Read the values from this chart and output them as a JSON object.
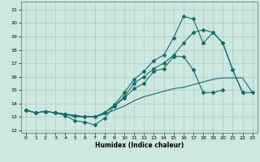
{
  "xlabel": "Humidex (Indice chaleur)",
  "bg_color": "#cce8e0",
  "grid_color": "#aaccC4",
  "line_color": "#1a6b6b",
  "xlim": [
    -0.5,
    23.5
  ],
  "ylim": [
    11.8,
    21.6
  ],
  "yticks": [
    12,
    13,
    14,
    15,
    16,
    17,
    18,
    19,
    20,
    21
  ],
  "xticks": [
    0,
    1,
    2,
    3,
    4,
    5,
    6,
    7,
    8,
    9,
    10,
    11,
    12,
    13,
    14,
    15,
    16,
    17,
    18,
    19,
    20,
    21,
    22,
    23
  ],
  "series": [
    {
      "x": [
        0,
        1,
        2,
        3,
        4,
        5,
        6,
        7,
        8,
        9,
        10,
        11,
        12,
        13,
        14,
        15,
        16,
        17,
        18,
        19,
        20
      ],
      "y": [
        13.5,
        13.3,
        13.4,
        13.3,
        13.1,
        12.7,
        12.6,
        12.4,
        12.9,
        13.8,
        14.4,
        15.1,
        15.5,
        16.4,
        16.6,
        17.5,
        17.5,
        16.5,
        14.8,
        14.8,
        15.0
      ],
      "marker": "D",
      "markersize": 2.0
    },
    {
      "x": [
        0,
        1,
        2,
        3,
        4,
        5,
        6,
        7,
        8,
        9,
        10,
        11,
        12,
        13,
        14,
        15,
        16,
        17,
        18,
        19,
        20,
        21,
        22,
        23
      ],
      "y": [
        13.5,
        13.3,
        13.4,
        13.3,
        13.2,
        13.0,
        13.0,
        13.0,
        13.2,
        13.5,
        13.8,
        14.2,
        14.5,
        14.7,
        14.9,
        15.1,
        15.2,
        15.4,
        15.6,
        15.8,
        15.9,
        15.9,
        15.9,
        14.8
      ],
      "marker": null,
      "markersize": 0
    },
    {
      "x": [
        0,
        1,
        2,
        3,
        4,
        5,
        6,
        7,
        8,
        9,
        10,
        11,
        12,
        13,
        14,
        15,
        16,
        17,
        18,
        19,
        20,
        21,
        22,
        23
      ],
      "y": [
        13.5,
        13.3,
        13.4,
        13.3,
        13.2,
        13.1,
        13.0,
        13.0,
        13.3,
        13.8,
        14.5,
        15.5,
        16.0,
        16.6,
        17.0,
        17.6,
        18.5,
        19.3,
        19.5,
        19.3,
        18.5,
        16.5,
        14.8,
        14.8
      ],
      "marker": "D",
      "markersize": 2.0
    },
    {
      "x": [
        0,
        1,
        2,
        3,
        4,
        5,
        6,
        7,
        8,
        9,
        10,
        11,
        12,
        13,
        14,
        15,
        16,
        17,
        18,
        19,
        20,
        21,
        22
      ],
      "y": [
        13.5,
        13.3,
        13.4,
        13.3,
        13.2,
        13.1,
        13.0,
        13.0,
        13.3,
        13.9,
        14.8,
        15.8,
        16.4,
        17.2,
        17.6,
        18.9,
        20.5,
        20.3,
        18.5,
        19.3,
        18.5,
        16.5,
        14.8
      ],
      "marker": "D",
      "markersize": 2.0
    }
  ]
}
